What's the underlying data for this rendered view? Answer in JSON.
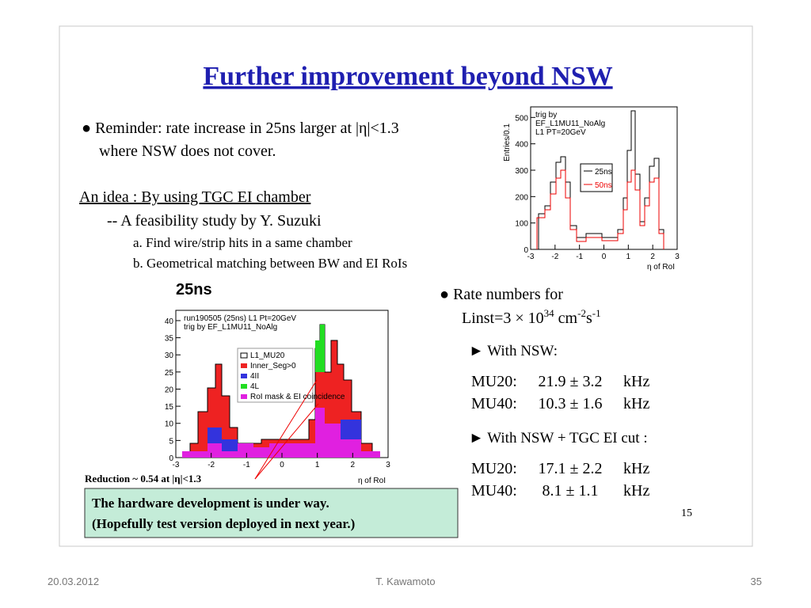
{
  "slide": {
    "title": "Further improvement beyond NSW",
    "bullet1": [
      "● Reminder: rate increase in 25ns larger at |η|<1.3",
      "where NSW does not cover."
    ],
    "idea": "An idea : By using TGC EI chamber",
    "study": "--  A feasibility study by Y. Suzuki",
    "steps": [
      "a. Find wire/strip hits in a same chamber",
      "b. Geometrical matching between BW and EI RoIs"
    ],
    "plot_title": "25ns",
    "reduction": "Reduction ~ 0.54 at |η|<1.3",
    "note": [
      "The hardware development is under way.",
      "(Hopefully test version deployed in next year.)"
    ],
    "rate_head": "● Rate numbers for",
    "linst": [
      "Linst=3 × 10",
      "34",
      " cm",
      "-2",
      "s",
      "-1"
    ],
    "with_nsw": "► With NSW:",
    "with_nsw_rows": [
      [
        "MU20:",
        "21.9 ± 3.2",
        "kHz"
      ],
      [
        "MU40:",
        "10.3 ± 1.6",
        "kHz"
      ]
    ],
    "with_cut": "► With NSW + TGC EI cut :",
    "with_cut_rows": [
      [
        "MU20:",
        "17.1 ± 2.2",
        "kHz"
      ],
      [
        "MU40:",
        "8.1 ± 1.1",
        "kHz"
      ]
    ],
    "page": "15"
  },
  "plots": [
    {
      "ylabel": "Entries/0.1",
      "xlabel": "η of RoI",
      "xlim": [
        -3,
        3
      ],
      "ylim": [
        0,
        540
      ],
      "xticks": [
        -3,
        -2,
        -1,
        0,
        1,
        2,
        3
      ],
      "yticks": [
        0,
        100,
        200,
        300,
        400,
        500
      ],
      "info": [
        "trig by",
        "EF_L1MU11_NoAlg",
        "L1 PT=20GeV"
      ],
      "legend": [
        "25ns",
        "50ns"
      ]
    },
    {
      "xlabel": "η of RoI",
      "xlim": [
        -3,
        3
      ],
      "ylim": [
        0,
        43
      ],
      "xticks": [
        -3,
        -2,
        -1,
        0,
        1,
        2,
        3
      ],
      "yticks": [
        0,
        5,
        10,
        15,
        20,
        25,
        30,
        35,
        40
      ],
      "info": [
        "run190505 (25ns)     L1 Pt=20GeV",
        "trig by EF_L1MU11_NoAlg"
      ],
      "legend": [
        "L1_MU20",
        "Inner_Seg>0",
        "4II",
        "4L",
        "RoI mask & EI coincidence"
      ]
    }
  ],
  "footer": {
    "date": "20.03.2012",
    "author": "T. Kawamoto",
    "number": "35"
  }
}
